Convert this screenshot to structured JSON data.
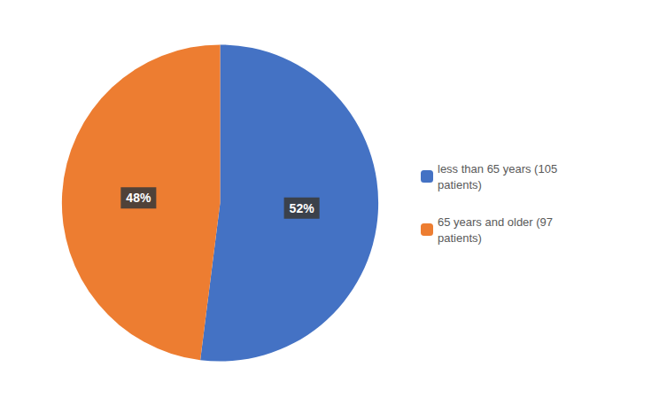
{
  "chart_data": {
    "type": "pie",
    "categories": [
      "less than 65 years (105\npatients)",
      "65 years and older (97\npatients)"
    ],
    "values": [
      52,
      48
    ],
    "value_labels": [
      "52%",
      "48%"
    ],
    "colors": [
      "#4472C4",
      "#ED7D31"
    ],
    "data_labels": true,
    "legend": "right"
  }
}
